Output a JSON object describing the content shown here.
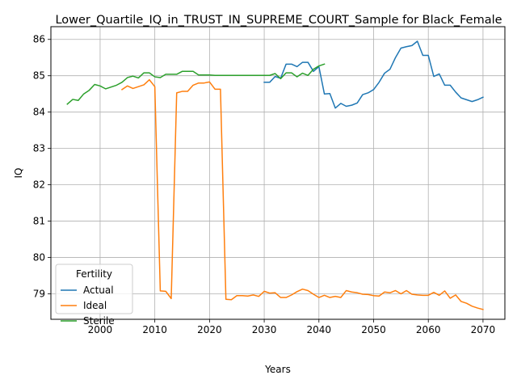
{
  "chart_data": {
    "type": "line",
    "title": "Lower_Quartile_IQ_in_TRUST_IN_SUPREME_COURT_Sample for Black_Female",
    "xlabel": "Years",
    "ylabel": "IQ",
    "xlim": [
      1991,
      2074
    ],
    "ylim": [
      78.3,
      86.35
    ],
    "xticks": [
      2000,
      2010,
      2020,
      2030,
      2040,
      2050,
      2060,
      2070
    ],
    "yticks": [
      79,
      80,
      81,
      82,
      83,
      84,
      85,
      86
    ],
    "grid": true,
    "legend": {
      "title": "Fertility",
      "placement": "lower-left"
    },
    "series": [
      {
        "name": "Actual",
        "color": "#1f77b4",
        "points": [
          [
            2030,
            84.82
          ],
          [
            2031,
            84.82
          ],
          [
            2032,
            84.98
          ],
          [
            2033,
            84.93
          ],
          [
            2034,
            85.32
          ],
          [
            2035,
            85.32
          ],
          [
            2036,
            85.25
          ],
          [
            2037,
            85.37
          ],
          [
            2038,
            85.37
          ],
          [
            2039,
            85.12
          ],
          [
            2040,
            85.25
          ],
          [
            2041,
            84.5
          ],
          [
            2042,
            84.51
          ],
          [
            2043,
            84.11
          ],
          [
            2044,
            84.24
          ],
          [
            2045,
            84.16
          ],
          [
            2046,
            84.19
          ],
          [
            2047,
            84.25
          ],
          [
            2048,
            84.48
          ],
          [
            2049,
            84.53
          ],
          [
            2050,
            84.62
          ],
          [
            2051,
            84.82
          ],
          [
            2052,
            85.07
          ],
          [
            2053,
            85.18
          ],
          [
            2054,
            85.5
          ],
          [
            2055,
            85.76
          ],
          [
            2056,
            85.8
          ],
          [
            2057,
            85.83
          ],
          [
            2058,
            85.95
          ],
          [
            2059,
            85.56
          ],
          [
            2060,
            85.56
          ],
          [
            2061,
            84.98
          ],
          [
            2062,
            85.05
          ],
          [
            2063,
            84.74
          ],
          [
            2064,
            84.74
          ],
          [
            2065,
            84.55
          ],
          [
            2066,
            84.39
          ],
          [
            2067,
            84.34
          ],
          [
            2068,
            84.29
          ],
          [
            2069,
            84.34
          ],
          [
            2070,
            84.41
          ]
        ]
      },
      {
        "name": "Ideal",
        "color": "#ff7f0e",
        "points": [
          [
            2004,
            84.62
          ],
          [
            2005,
            84.72
          ],
          [
            2006,
            84.65
          ],
          [
            2007,
            84.7
          ],
          [
            2008,
            84.75
          ],
          [
            2009,
            84.89
          ],
          [
            2010,
            84.7
          ],
          [
            2011,
            79.08
          ],
          [
            2012,
            79.07
          ],
          [
            2013,
            78.87
          ],
          [
            2014,
            84.53
          ],
          [
            2015,
            84.57
          ],
          [
            2016,
            84.57
          ],
          [
            2017,
            84.74
          ],
          [
            2018,
            84.8
          ],
          [
            2019,
            84.8
          ],
          [
            2020,
            84.83
          ],
          [
            2021,
            84.63
          ],
          [
            2022,
            84.63
          ],
          [
            2023,
            78.85
          ],
          [
            2024,
            78.84
          ],
          [
            2025,
            78.95
          ],
          [
            2026,
            78.95
          ],
          [
            2027,
            78.94
          ],
          [
            2028,
            78.97
          ],
          [
            2029,
            78.93
          ],
          [
            2030,
            79.07
          ],
          [
            2031,
            79.02
          ],
          [
            2032,
            79.03
          ],
          [
            2033,
            78.9
          ],
          [
            2034,
            78.9
          ],
          [
            2035,
            78.97
          ],
          [
            2036,
            79.06
          ],
          [
            2037,
            79.13
          ],
          [
            2038,
            79.09
          ],
          [
            2039,
            78.99
          ],
          [
            2040,
            78.9
          ],
          [
            2041,
            78.96
          ],
          [
            2042,
            78.9
          ],
          [
            2043,
            78.93
          ],
          [
            2044,
            78.9
          ],
          [
            2045,
            79.09
          ],
          [
            2046,
            79.05
          ],
          [
            2047,
            79.03
          ],
          [
            2048,
            78.99
          ],
          [
            2049,
            78.98
          ],
          [
            2050,
            78.95
          ],
          [
            2051,
            78.94
          ],
          [
            2052,
            79.05
          ],
          [
            2053,
            79.03
          ],
          [
            2054,
            79.09
          ],
          [
            2055,
            79.0
          ],
          [
            2056,
            79.09
          ],
          [
            2057,
            78.99
          ],
          [
            2058,
            78.97
          ],
          [
            2059,
            78.96
          ],
          [
            2060,
            78.96
          ],
          [
            2061,
            79.04
          ],
          [
            2062,
            78.96
          ],
          [
            2063,
            79.08
          ],
          [
            2064,
            78.88
          ],
          [
            2065,
            78.97
          ],
          [
            2066,
            78.79
          ],
          [
            2067,
            78.74
          ],
          [
            2068,
            78.66
          ],
          [
            2069,
            78.61
          ],
          [
            2070,
            78.57
          ]
        ]
      },
      {
        "name": "Sterile",
        "color": "#2ca02c",
        "points": [
          [
            1994,
            84.22
          ],
          [
            1995,
            84.35
          ],
          [
            1996,
            84.32
          ],
          [
            1997,
            84.5
          ],
          [
            1998,
            84.6
          ],
          [
            1999,
            84.76
          ],
          [
            2000,
            84.72
          ],
          [
            2001,
            84.64
          ],
          [
            2002,
            84.69
          ],
          [
            2003,
            84.74
          ],
          [
            2004,
            84.82
          ],
          [
            2005,
            84.95
          ],
          [
            2006,
            84.99
          ],
          [
            2007,
            84.94
          ],
          [
            2008,
            85.08
          ],
          [
            2009,
            85.08
          ],
          [
            2010,
            84.97
          ],
          [
            2011,
            84.95
          ],
          [
            2012,
            85.04
          ],
          [
            2013,
            85.04
          ],
          [
            2014,
            85.04
          ],
          [
            2015,
            85.12
          ],
          [
            2016,
            85.12
          ],
          [
            2017,
            85.12
          ],
          [
            2018,
            85.02
          ],
          [
            2019,
            85.02
          ],
          [
            2020,
            85.02
          ],
          [
            2021,
            85.01
          ],
          [
            2022,
            85.01
          ],
          [
            2023,
            85.01
          ],
          [
            2024,
            85.01
          ],
          [
            2025,
            85.01
          ],
          [
            2026,
            85.01
          ],
          [
            2027,
            85.01
          ],
          [
            2028,
            85.01
          ],
          [
            2029,
            85.01
          ],
          [
            2030,
            85.01
          ],
          [
            2031,
            85.01
          ],
          [
            2032,
            85.06
          ],
          [
            2033,
            84.92
          ],
          [
            2034,
            85.08
          ],
          [
            2035,
            85.08
          ],
          [
            2036,
            84.97
          ],
          [
            2037,
            85.07
          ],
          [
            2038,
            85.01
          ],
          [
            2039,
            85.18
          ],
          [
            2040,
            85.27
          ],
          [
            2041,
            85.32
          ]
        ]
      }
    ]
  }
}
